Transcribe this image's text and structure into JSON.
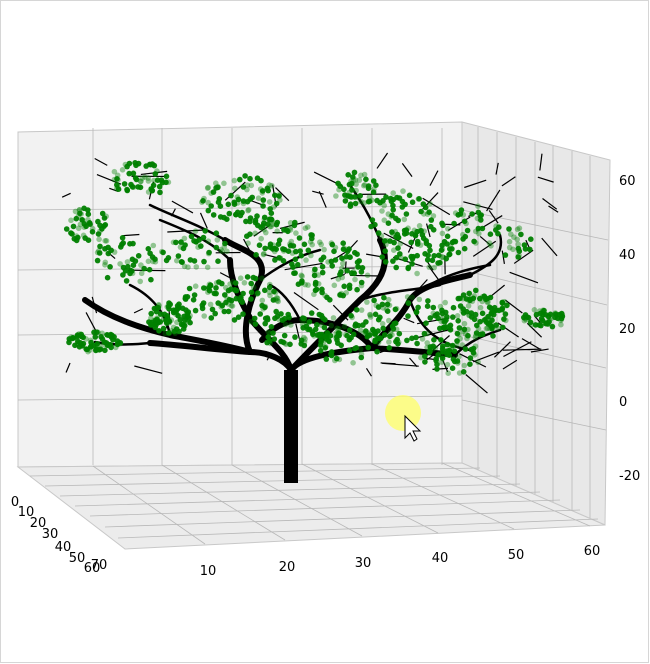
{
  "chart_data": {
    "type": "scatter",
    "subtype": "3d-tree",
    "title": "",
    "xlabel": "",
    "ylabel": "",
    "zlabel": "",
    "x_axis": {
      "ticks": [
        "10",
        "20",
        "30",
        "40",
        "50",
        "60"
      ],
      "range": [
        3,
        62
      ]
    },
    "y_axis": {
      "ticks": [
        "0",
        "10",
        "20",
        "30",
        "40",
        "50",
        "60",
        "70"
      ],
      "range": [
        0,
        72
      ]
    },
    "z_axis": {
      "ticks": [
        "-20",
        "0",
        "20",
        "40",
        "60"
      ],
      "range": [
        -28,
        64
      ]
    },
    "grid": true,
    "colors": {
      "foliage": "#008000",
      "branches": "#000000",
      "pane": "#f2f2f2",
      "grid": "#b0b0b0",
      "cursor_highlight": "#ffff66"
    },
    "trunk": {
      "x": 33,
      "y": 36,
      "z_from": -20,
      "z_to": 12
    },
    "series": [
      {
        "marker": "circle",
        "color": "#008000",
        "data": "foliage point clusters at branch tips"
      },
      {
        "marker": "line",
        "color": "#000000",
        "data": "branch segments"
      }
    ]
  },
  "overlay": {
    "cursor": "pointer-arrow-icon"
  }
}
